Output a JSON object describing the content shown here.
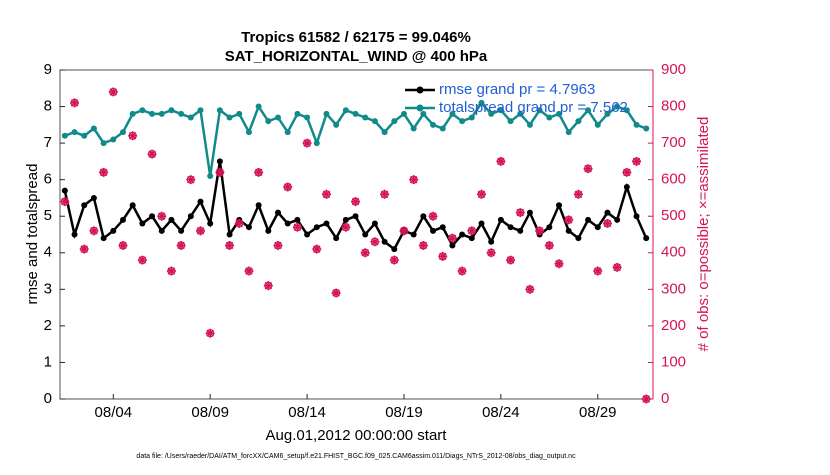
{
  "chart_data": {
    "type": "line",
    "title": "Tropics 61582 / 62175 = 99.046%",
    "subtitle": "SAT_HORIZONTAL_WIND @ 400 hPa",
    "xlabel": "Aug.01,2012 00:00:00 start",
    "ylabel": "rmse and totalspread",
    "y2label": "# of obs: o=possible; ×=assimilated",
    "footnote": "data file: /Users/raeder/DAI/ATM_forcXX/CAM6_setup/f.e21.FHIST_BGC.f09_025.CAM6assim.011/Diags_NTrS_2012-08/obs_diag_output.nc",
    "legend": "northeast",
    "x": [
      1.5,
      2,
      2.5,
      3,
      3.5,
      4,
      4.5,
      5,
      5.5,
      6,
      6.5,
      7,
      7.5,
      8,
      8.5,
      9,
      9.5,
      10,
      10.5,
      11,
      11.5,
      12,
      12.5,
      13,
      13.5,
      14,
      14.5,
      15,
      15.5,
      16,
      16.5,
      17,
      17.5,
      18,
      18.5,
      19,
      19.5,
      20,
      20.5,
      21,
      21.5,
      22,
      22.5,
      23,
      23.5,
      24,
      24.5,
      25,
      25.5,
      26,
      26.5,
      27,
      27.5,
      28,
      28.5,
      29,
      29.5,
      30,
      30.5,
      31,
      31.5
    ],
    "xlim": [
      1.25,
      31.85
    ],
    "xticks": [
      {
        "value": 4,
        "label": "08/04"
      },
      {
        "value": 9,
        "label": "08/09"
      },
      {
        "value": 14,
        "label": "08/14"
      },
      {
        "value": 19,
        "label": "08/19"
      },
      {
        "value": 24,
        "label": "08/24"
      },
      {
        "value": 29,
        "label": "08/29"
      }
    ],
    "ylim": [
      0,
      9
    ],
    "yticks": [
      0,
      1,
      2,
      3,
      4,
      5,
      6,
      7,
      8,
      9
    ],
    "y2lim": [
      0,
      900
    ],
    "y2ticks": [
      0,
      100,
      200,
      300,
      400,
      500,
      600,
      700,
      800,
      900
    ],
    "series": [
      {
        "name": "rmse grand pr = 4.7963",
        "color": "#000000",
        "marker": "dot",
        "values": [
          5.7,
          4.5,
          5.3,
          5.5,
          4.4,
          4.6,
          4.9,
          5.3,
          4.8,
          5.0,
          4.6,
          4.9,
          4.6,
          5.0,
          5.4,
          4.8,
          6.5,
          4.5,
          4.9,
          4.7,
          5.3,
          4.6,
          5.1,
          4.8,
          4.9,
          4.5,
          4.7,
          4.8,
          4.4,
          4.9,
          5.0,
          4.5,
          4.8,
          4.3,
          4.1,
          4.6,
          4.5,
          5.0,
          4.6,
          4.7,
          4.2,
          4.5,
          4.4,
          4.8,
          4.3,
          4.9,
          4.7,
          4.6,
          5.1,
          4.5,
          4.7,
          5.3,
          4.6,
          4.4,
          4.9,
          4.7,
          5.1,
          4.9,
          5.8,
          5.0,
          4.4
        ]
      },
      {
        "name": "totalspread grand pr = 7.562",
        "color": "#138a8a",
        "marker": "dot",
        "values": [
          7.2,
          7.3,
          7.2,
          7.4,
          7.0,
          7.1,
          7.3,
          7.8,
          7.9,
          7.8,
          7.8,
          7.9,
          7.8,
          7.7,
          7.9,
          6.1,
          7.9,
          7.7,
          7.8,
          7.3,
          8.0,
          7.6,
          7.7,
          7.3,
          7.8,
          7.7,
          7.0,
          7.8,
          7.5,
          7.9,
          7.8,
          7.7,
          7.6,
          7.3,
          7.6,
          7.8,
          7.4,
          7.8,
          7.5,
          7.4,
          7.8,
          7.6,
          7.7,
          8.1,
          7.8,
          7.9,
          7.6,
          7.8,
          7.5,
          7.9,
          7.7,
          7.8,
          7.3,
          7.6,
          7.9,
          7.5,
          7.8,
          8.0,
          7.9,
          7.5,
          7.4
        ]
      },
      {
        "color": "#d4145a",
        "marker": "circle",
        "axis": "y2",
        "values": [
          540,
          810,
          410,
          460,
          620,
          840,
          420,
          720,
          380,
          670,
          500,
          350,
          420,
          600,
          460,
          180,
          620,
          420,
          480,
          350,
          620,
          310,
          420,
          580,
          470,
          700,
          410,
          560,
          290,
          470,
          540,
          400,
          430,
          560,
          380,
          460,
          600,
          420,
          500,
          390,
          440,
          350,
          460,
          560,
          400,
          650,
          380,
          510,
          300,
          460,
          420,
          370,
          490,
          560,
          630,
          350,
          480,
          360,
          620,
          650,
          0
        ]
      },
      {
        "color": "#d4145a",
        "marker": "star",
        "axis": "y2",
        "values": [
          540,
          810,
          410,
          460,
          620,
          840,
          420,
          720,
          380,
          670,
          500,
          350,
          420,
          600,
          460,
          180,
          620,
          420,
          480,
          350,
          620,
          310,
          420,
          580,
          470,
          700,
          410,
          560,
          290,
          470,
          540,
          400,
          430,
          560,
          380,
          460,
          600,
          420,
          500,
          390,
          440,
          350,
          460,
          560,
          400,
          650,
          380,
          510,
          300,
          460,
          420,
          370,
          490,
          560,
          630,
          350,
          480,
          360,
          620,
          650,
          0
        ]
      }
    ]
  }
}
